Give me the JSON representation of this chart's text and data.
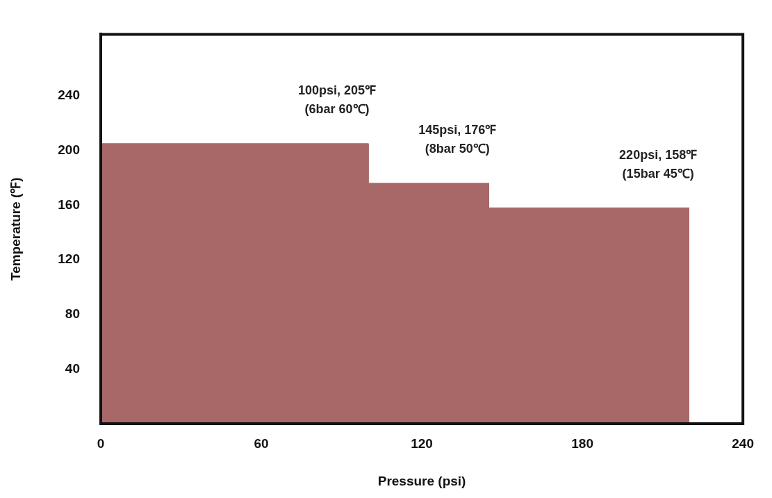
{
  "chart_data": {
    "type": "area",
    "xlabel": "Pressure (psi)",
    "ylabel": "Temperature (℉)",
    "x": [
      0,
      100,
      100,
      145,
      145,
      220
    ],
    "values": [
      205,
      205,
      176,
      176,
      158,
      158
    ],
    "color": "#a86868",
    "xlim": [
      0,
      240
    ],
    "xticks": [
      0,
      60,
      120,
      180,
      240
    ],
    "ylim": [
      0,
      285
    ],
    "yticks": [
      40,
      80,
      120,
      160,
      200,
      240
    ],
    "grid": false,
    "annotations": [
      "100psi, 205℉\n(6bar 60℃)",
      "145psi, 176℉\n(8bar 50℃)",
      "220psi, 158℉\n(15bar 45℃)"
    ]
  }
}
